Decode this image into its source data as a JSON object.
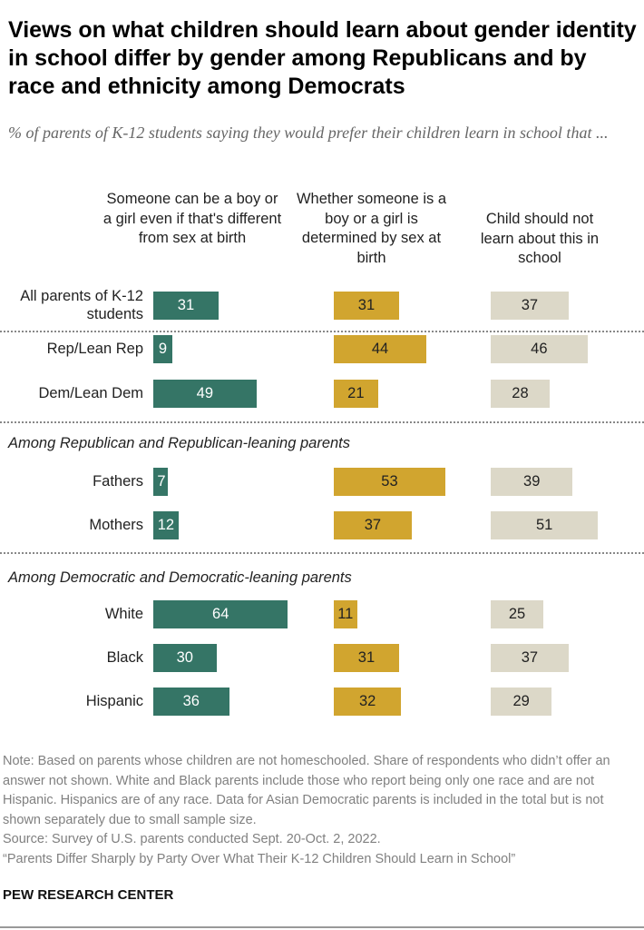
{
  "chart_data": {
    "type": "bar",
    "title": "Views on what children should learn about gender identity in school differ by gender among Republicans and by race and ethnicity among Democrats",
    "subtitle": "% of parents of K-12 students saying they would prefer their children learn in school that ...",
    "series": [
      {
        "name": "Someone can be a boy or a girl even if that's different from sex at birth",
        "color": "#357566",
        "text_color": "#ffffff",
        "values": [
          31,
          9,
          49,
          7,
          12,
          64,
          30,
          36
        ]
      },
      {
        "name": "Whether someone is a boy or a girl is determined by sex at birth",
        "color": "#d1a52f",
        "text_color": "#222222",
        "values": [
          31,
          44,
          21,
          53,
          37,
          11,
          31,
          32
        ]
      },
      {
        "name": "Child should not learn about this in school",
        "color": "#dcd8c8",
        "text_color": "#222222",
        "values": [
          37,
          46,
          28,
          39,
          51,
          25,
          37,
          29
        ]
      }
    ],
    "categories": [
      "All parents of K-12 students",
      "Rep/Lean Rep",
      "Dem/Lean Dem",
      "Fathers",
      "Mothers",
      "White",
      "Black",
      "Hispanic"
    ],
    "sections": [
      "Among Republican and Republican-leaning parents",
      "Among Democratic and Democratic-leaning parents"
    ],
    "grid": false,
    "legend": "column headers at top"
  },
  "note": "Note: Based on parents whose children are not homeschooled. Share of respondents who didn’t offer an answer not shown. White and Black parents include those who report being only one race and are not Hispanic. Hispanics are of any race. Data for Asian Democratic parents is included in the total but is not shown separately due to small sample size.",
  "source": "Source: Survey of U.S. parents conducted Sept. 20-Oct. 2, 2022.",
  "report": "“Parents Differ Sharply by Party Over What Their K-12 Children Should Learn in School”",
  "brand": "PEW RESEARCH CENTER"
}
